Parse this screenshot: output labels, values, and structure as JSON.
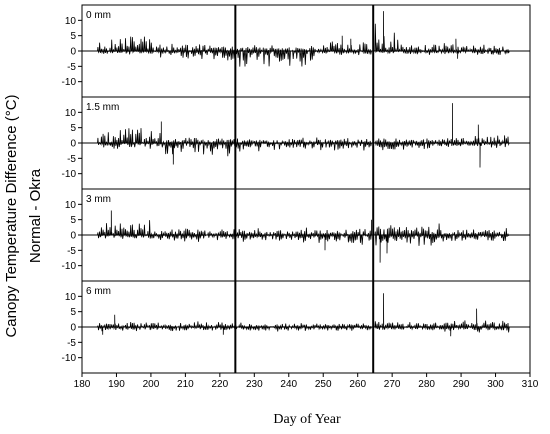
{
  "chart_data": {
    "type": "line",
    "ylabel": "Canopy Temperature Difference (°C)",
    "ylabel2": "Normal - Okra",
    "xlabel": "Day of Year",
    "xlim": [
      180,
      310
    ],
    "ylim": [
      -15,
      15
    ],
    "xticks": [
      180,
      190,
      200,
      210,
      220,
      230,
      240,
      250,
      260,
      270,
      280,
      290,
      300,
      310
    ],
    "yticks": [
      10,
      5,
      0,
      -5,
      -10
    ],
    "vlines": [
      224.5,
      264.5
    ],
    "panels": [
      {
        "label": "0 mm",
        "segments": [
          {
            "start": 184.5,
            "end": 201,
            "peak": 6,
            "trough": -1.5
          },
          {
            "start": 201,
            "end": 220,
            "peak": 2.5,
            "trough": -3
          },
          {
            "start": 220,
            "end": 248,
            "peak": 2,
            "trough": -6
          },
          {
            "start": 248,
            "end": 264,
            "peak": 3.5,
            "trough": -1.5
          },
          {
            "start": 265,
            "end": 272,
            "peak": 10,
            "trough": -1
          },
          {
            "start": 272,
            "end": 304,
            "peak": 3,
            "trough": -1.5
          }
        ],
        "spikes": [
          [
            267.5,
            13
          ],
          [
            258,
            4
          ],
          [
            255.5,
            5
          ],
          [
            288.5,
            4
          ],
          [
            289,
            -2.5
          ]
        ]
      },
      {
        "label": "1.5 mm",
        "segments": [
          {
            "start": 184.5,
            "end": 203,
            "peak": 6,
            "trough": -2
          },
          {
            "start": 203,
            "end": 224,
            "peak": 2,
            "trough": -5
          },
          {
            "start": 224,
            "end": 264,
            "peak": 2,
            "trough": -3
          },
          {
            "start": 265,
            "end": 285,
            "peak": 2,
            "trough": -3
          },
          {
            "start": 285,
            "end": 304,
            "peak": 3,
            "trough": -2
          }
        ],
        "spikes": [
          [
            203,
            7
          ],
          [
            287.5,
            13
          ],
          [
            295,
            6
          ],
          [
            295.5,
            -8
          ],
          [
            206.5,
            -7
          ]
        ]
      },
      {
        "label": "3 mm",
        "segments": [
          {
            "start": 184.5,
            "end": 200,
            "peak": 5,
            "trough": -1.5
          },
          {
            "start": 200,
            "end": 240,
            "peak": 2.5,
            "trough": -2.5
          },
          {
            "start": 240,
            "end": 264,
            "peak": 2.5,
            "trough": -4
          },
          {
            "start": 265,
            "end": 285,
            "peak": 4,
            "trough": -4
          },
          {
            "start": 285,
            "end": 304,
            "peak": 2.5,
            "trough": -2.5
          }
        ],
        "spikes": [
          [
            188.5,
            8
          ],
          [
            264,
            5
          ],
          [
            266.5,
            -9
          ],
          [
            268.5,
            -6
          ],
          [
            250.5,
            -5
          ]
        ]
      },
      {
        "label": "6 mm",
        "segments": [
          {
            "start": 184.5,
            "end": 224,
            "peak": 2,
            "trough": -1.5
          },
          {
            "start": 224,
            "end": 264,
            "peak": 1.5,
            "trough": -1.5
          },
          {
            "start": 265,
            "end": 285,
            "peak": 2.5,
            "trough": -1.5
          },
          {
            "start": 285,
            "end": 304,
            "peak": 2.5,
            "trough": -2
          }
        ],
        "spikes": [
          [
            267.5,
            11
          ],
          [
            294.5,
            6
          ],
          [
            189.5,
            4
          ],
          [
            186,
            -2.5
          ],
          [
            221,
            -2.5
          ],
          [
            287,
            -3
          ]
        ]
      }
    ]
  }
}
